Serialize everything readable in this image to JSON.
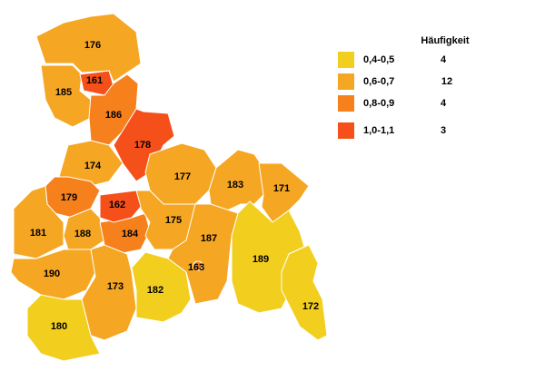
{
  "map": {
    "regions": [
      {
        "label": "176",
        "color": "#f5a623"
      },
      {
        "label": "185",
        "color": "#f5a623"
      },
      {
        "label": "161",
        "color": "#f5501a"
      },
      {
        "label": "186",
        "color": "#f5801c"
      },
      {
        "label": "178",
        "color": "#f5501a"
      },
      {
        "label": "174",
        "color": "#f5a623"
      },
      {
        "label": "177",
        "color": "#f5a623"
      },
      {
        "label": "183",
        "color": "#f5a623"
      },
      {
        "label": "171",
        "color": "#f5a623"
      },
      {
        "label": "179",
        "color": "#f5801c"
      },
      {
        "label": "188",
        "color": "#f5a623"
      },
      {
        "label": "184",
        "color": "#f5801c"
      },
      {
        "label": "175",
        "color": "#f5a623"
      },
      {
        "label": "181",
        "color": "#f5a623"
      },
      {
        "label": "187",
        "color": "#f5a623"
      },
      {
        "label": "190",
        "color": "#f5a623"
      },
      {
        "label": "173",
        "color": "#f5a623"
      },
      {
        "label": "182",
        "color": "#f2cf1e"
      },
      {
        "label": "189",
        "color": "#f2cf1e"
      },
      {
        "label": "172",
        "color": "#f2cf1e"
      },
      {
        "label": "180",
        "color": "#f2cf1e"
      },
      {
        "label": "162",
        "color": "#f5501a"
      },
      {
        "label": "163",
        "color": "#f5801c"
      }
    ],
    "legend": {
      "title": "Häufigkeit",
      "classes": [
        {
          "label": "0,4-0,5",
          "count": 4,
          "color": "#f2cf1e"
        },
        {
          "label": "0,6-0,7",
          "count": 12,
          "color": "#f5a623"
        },
        {
          "label": "0,8-0,9",
          "count": 4,
          "color": "#f5801c"
        },
        {
          "label": "1,0-1,1",
          "count": 3,
          "color": "#f5501a"
        }
      ]
    }
  }
}
